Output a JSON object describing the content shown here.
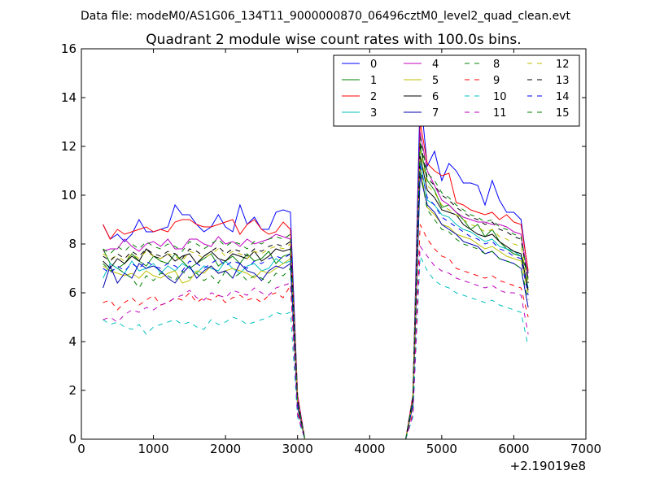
{
  "figure": {
    "suptitle": "Data file: modeM0/AS1G06_134T11_9000000870_06496cztM0_level2_quad_clean.evt"
  },
  "chart_data": {
    "type": "line",
    "title": "Quadrant 2 module wise count rates with 100.0s bins.",
    "xlabel": "",
    "ylabel": "",
    "xlim": [
      0,
      7000
    ],
    "ylim": [
      0,
      16
    ],
    "x_offset_label": "+2.19019e8",
    "xticks": [
      0,
      1000,
      2000,
      3000,
      4000,
      5000,
      6000,
      7000
    ],
    "yticks": [
      0,
      2,
      4,
      6,
      8,
      10,
      12,
      14,
      16
    ],
    "xtick_labels": [
      "0",
      "1000",
      "2000",
      "3000",
      "4000",
      "5000",
      "6000",
      "7000"
    ],
    "ytick_labels": [
      "0",
      "2",
      "4",
      "6",
      "8",
      "10",
      "12",
      "14",
      "16"
    ],
    "grid": false,
    "legend": {
      "placement": "top-right",
      "columns": 4
    },
    "x": [
      300,
      400,
      500,
      600,
      700,
      800,
      900,
      1000,
      1100,
      1200,
      1300,
      1400,
      1500,
      1600,
      1700,
      1800,
      1900,
      2000,
      2100,
      2200,
      2300,
      2400,
      2500,
      2600,
      2700,
      2800,
      2900,
      3000,
      3100,
      3200,
      3300,
      3400,
      3500,
      3600,
      3700,
      3800,
      3900,
      4000,
      4100,
      4200,
      4300,
      4400,
      4500,
      4600,
      4700,
      4800,
      4900,
      5000,
      5100,
      5200,
      5300,
      5400,
      5500,
      5600,
      5700,
      5800,
      5900,
      6000,
      6100,
      6200
    ],
    "series": [
      {
        "name": "0",
        "color": "#0000ff",
        "dash": "solid",
        "values": [
          8.8,
          8.2,
          8.4,
          8.1,
          8.4,
          9.0,
          8.5,
          8.5,
          8.6,
          8.7,
          9.6,
          9.2,
          9.2,
          8.8,
          8.5,
          8.7,
          9.2,
          8.7,
          8.5,
          9.6,
          8.8,
          9.1,
          8.6,
          8.6,
          9.3,
          9.4,
          9.3,
          1.8,
          0,
          0,
          0,
          0,
          0,
          0,
          0,
          0,
          0,
          0,
          0,
          0,
          0,
          0,
          0,
          1.8,
          14.2,
          11.2,
          11.8,
          10.6,
          11.3,
          11.0,
          10.5,
          10.5,
          10.4,
          9.6,
          10.6,
          9.8,
          9.3,
          9.3,
          9.0,
          6.8
        ]
      },
      {
        "name": "1",
        "color": "#008000",
        "dash": "solid",
        "values": [
          7.8,
          7.2,
          7.0,
          7.2,
          7.6,
          7.3,
          7.1,
          7.5,
          7.3,
          7.2,
          7.6,
          7.3,
          7.0,
          7.2,
          7.4,
          7.6,
          7.1,
          7.3,
          7.5,
          7.2,
          7.6,
          7.3,
          7.4,
          7.7,
          7.2,
          7.5,
          7.6,
          1.5,
          0,
          0,
          0,
          0,
          0,
          0,
          0,
          0,
          0,
          0,
          0,
          0,
          0,
          0,
          0,
          1.6,
          12.0,
          10.6,
          10.2,
          9.5,
          9.6,
          9.3,
          9.0,
          8.6,
          8.8,
          8.3,
          8.6,
          8.1,
          7.8,
          7.6,
          7.5,
          6.8
        ]
      },
      {
        "name": "2",
        "color": "#ff0000",
        "dash": "solid",
        "values": [
          8.8,
          8.2,
          8.6,
          8.4,
          8.5,
          8.6,
          8.7,
          8.5,
          8.6,
          8.5,
          8.9,
          9.0,
          9.0,
          8.8,
          8.7,
          8.7,
          8.8,
          8.9,
          9.0,
          8.4,
          8.8,
          9.0,
          8.6,
          8.4,
          8.5,
          8.9,
          8.6,
          1.8,
          0,
          0,
          0,
          0,
          0,
          0,
          0,
          0,
          0,
          0,
          0,
          0,
          0,
          0,
          0,
          1.8,
          13.0,
          11.3,
          11.0,
          10.8,
          10.9,
          9.7,
          9.6,
          9.4,
          9.3,
          9.2,
          9.3,
          9.0,
          9.2,
          8.9,
          8.8,
          6.9
        ]
      },
      {
        "name": "3",
        "color": "#00bfbf",
        "dash": "solid",
        "values": [
          6.6,
          7.2,
          7.0,
          6.8,
          7.3,
          6.9,
          7.0,
          7.2,
          6.8,
          7.1,
          6.9,
          7.2,
          7.0,
          6.8,
          7.1,
          7.0,
          6.9,
          7.3,
          7.0,
          6.8,
          7.1,
          7.2,
          6.9,
          7.0,
          7.4,
          7.2,
          7.3,
          1.4,
          0,
          0,
          0,
          0,
          0,
          0,
          0,
          0,
          0,
          0,
          0,
          0,
          0,
          0,
          0,
          1.5,
          11.4,
          9.8,
          9.6,
          9.2,
          9.1,
          8.8,
          8.6,
          8.5,
          8.3,
          8.1,
          8.2,
          7.9,
          7.8,
          7.7,
          7.5,
          6.2
        ]
      },
      {
        "name": "4",
        "color": "#bf00bf",
        "dash": "solid",
        "values": [
          7.7,
          7.8,
          7.8,
          8.2,
          7.9,
          7.7,
          8.0,
          8.1,
          7.9,
          8.2,
          7.8,
          7.8,
          8.2,
          8.2,
          8.0,
          7.9,
          8.3,
          8.0,
          8.1,
          7.9,
          8.2,
          8.0,
          8.1,
          8.2,
          8.4,
          8.3,
          8.2,
          1.7,
          0,
          0,
          0,
          0,
          0,
          0,
          0,
          0,
          0,
          0,
          0,
          0,
          0,
          0,
          0,
          1.7,
          12.6,
          11.0,
          10.4,
          9.8,
          9.6,
          9.3,
          9.1,
          9.0,
          8.9,
          8.9,
          8.8,
          8.8,
          8.7,
          8.5,
          8.4,
          6.6
        ]
      },
      {
        "name": "5",
        "color": "#bfbf00",
        "dash": "solid",
        "values": [
          7.1,
          6.9,
          6.8,
          6.7,
          6.8,
          6.6,
          6.9,
          6.7,
          6.6,
          6.8,
          6.9,
          6.4,
          6.5,
          6.9,
          6.8,
          7.1,
          6.8,
          6.9,
          7.0,
          6.9,
          6.8,
          6.6,
          6.9,
          6.8,
          7.0,
          7.2,
          7.4,
          1.4,
          0,
          0,
          0,
          0,
          0,
          0,
          0,
          0,
          0,
          0,
          0,
          0,
          0,
          0,
          0,
          1.4,
          11.1,
          9.5,
          9.2,
          8.8,
          8.7,
          8.4,
          8.3,
          8.2,
          8.0,
          7.8,
          7.9,
          7.7,
          7.5,
          7.4,
          7.3,
          6.0
        ]
      },
      {
        "name": "6",
        "color": "#000000",
        "dash": "solid",
        "values": [
          7.3,
          7.0,
          7.4,
          7.2,
          7.5,
          7.3,
          7.8,
          7.5,
          7.4,
          7.6,
          7.3,
          7.5,
          7.6,
          7.2,
          7.5,
          7.7,
          7.4,
          7.3,
          7.6,
          7.5,
          7.4,
          7.7,
          7.3,
          7.5,
          7.8,
          7.7,
          7.8,
          1.5,
          0,
          0,
          0,
          0,
          0,
          0,
          0,
          0,
          0,
          0,
          0,
          0,
          0,
          0,
          0,
          1.6,
          11.6,
          10.2,
          9.9,
          9.4,
          9.3,
          9.2,
          8.8,
          8.6,
          8.4,
          8.3,
          8.4,
          8.1,
          7.9,
          7.7,
          7.6,
          6.1
        ]
      },
      {
        "name": "7",
        "color": "#0000aa",
        "dash": "solid",
        "values": [
          6.2,
          7.1,
          6.4,
          6.8,
          6.6,
          7.2,
          7.0,
          7.1,
          6.9,
          6.6,
          6.4,
          6.8,
          7.1,
          6.6,
          6.9,
          7.1,
          6.8,
          6.9,
          6.6,
          7.2,
          6.9,
          6.8,
          6.5,
          6.9,
          7.1,
          7.0,
          7.2,
          1.3,
          0,
          0,
          0,
          0,
          0,
          0,
          0,
          0,
          0,
          0,
          0,
          0,
          0,
          0,
          0,
          1.4,
          10.8,
          9.6,
          9.3,
          8.8,
          8.6,
          8.4,
          8.1,
          8.0,
          7.9,
          7.6,
          7.7,
          7.4,
          7.3,
          7.2,
          7.0,
          5.4
        ]
      },
      {
        "name": "8",
        "color": "#008000",
        "dash": "dashed",
        "values": [
          7.2,
          6.9,
          7.0,
          6.8,
          6.6,
          6.2,
          6.7,
          6.5,
          6.8,
          6.7,
          6.5,
          6.9,
          6.6,
          6.8,
          6.5,
          6.7,
          6.4,
          6.9,
          6.6,
          6.8,
          6.5,
          6.7,
          6.6,
          6.4,
          6.8,
          6.7,
          7.0,
          1.3,
          0,
          0,
          0,
          0,
          0,
          0,
          0,
          0,
          0,
          0,
          0,
          0,
          0,
          0,
          0,
          1.4,
          11.0,
          9.4,
          9.0,
          8.6,
          8.5,
          8.2,
          8.0,
          7.9,
          7.8,
          7.6,
          7.7,
          7.4,
          7.3,
          7.2,
          7.0,
          5.7
        ]
      },
      {
        "name": "9",
        "color": "#ff0000",
        "dash": "dashed",
        "values": [
          5.6,
          5.7,
          5.3,
          5.6,
          5.8,
          5.5,
          5.7,
          5.9,
          5.5,
          5.6,
          5.8,
          5.7,
          6.0,
          5.6,
          5.8,
          5.7,
          5.9,
          5.6,
          5.8,
          5.9,
          5.7,
          5.8,
          5.6,
          5.9,
          6.0,
          5.8,
          6.3,
          1.1,
          0,
          0,
          0,
          0,
          0,
          0,
          0,
          0,
          0,
          0,
          0,
          0,
          0,
          0,
          0,
          1.1,
          8.8,
          8.2,
          7.8,
          7.5,
          7.4,
          7.0,
          6.9,
          6.8,
          6.7,
          6.6,
          6.7,
          6.5,
          6.4,
          6.3,
          6.2,
          5.0
        ]
      },
      {
        "name": "10",
        "color": "#00bfbf",
        "dash": "dashed",
        "values": [
          4.9,
          4.7,
          4.8,
          4.6,
          4.5,
          4.7,
          4.3,
          4.6,
          4.7,
          4.8,
          4.9,
          4.7,
          4.8,
          4.6,
          4.5,
          4.9,
          4.7,
          4.8,
          5.0,
          4.9,
          4.7,
          4.8,
          4.9,
          5.0,
          5.2,
          5.1,
          5.2,
          0.9,
          0,
          0,
          0,
          0,
          0,
          0,
          0,
          0,
          0,
          0,
          0,
          0,
          0,
          0,
          0,
          0.9,
          7.5,
          6.9,
          6.5,
          6.3,
          6.2,
          6.0,
          5.9,
          5.8,
          5.7,
          5.6,
          5.7,
          5.5,
          5.4,
          5.3,
          5.2,
          3.8
        ]
      },
      {
        "name": "11",
        "color": "#bf00bf",
        "dash": "dashed",
        "values": [
          4.9,
          5.0,
          4.8,
          5.1,
          5.3,
          5.2,
          5.4,
          5.3,
          5.5,
          5.6,
          5.8,
          5.9,
          6.1,
          5.8,
          5.7,
          6.0,
          5.9,
          5.8,
          6.1,
          6.0,
          5.9,
          6.2,
          6.0,
          5.9,
          6.2,
          6.3,
          6.4,
          1.0,
          0,
          0,
          0,
          0,
          0,
          0,
          0,
          0,
          0,
          0,
          0,
          0,
          0,
          0,
          0,
          1.0,
          7.9,
          7.5,
          7.1,
          6.9,
          6.8,
          6.6,
          6.5,
          6.4,
          6.3,
          6.2,
          6.3,
          6.1,
          6.0,
          6.0,
          5.9,
          4.3
        ]
      },
      {
        "name": "12",
        "color": "#bfbf00",
        "dash": "dashed",
        "values": [
          7.6,
          7.4,
          7.5,
          7.3,
          7.6,
          7.4,
          7.7,
          7.5,
          7.4,
          7.6,
          7.5,
          7.3,
          7.7,
          7.6,
          7.4,
          7.6,
          7.8,
          7.5,
          7.7,
          7.6,
          7.4,
          7.7,
          7.6,
          7.8,
          7.9,
          7.8,
          8.0,
          1.5,
          0,
          0,
          0,
          0,
          0,
          0,
          0,
          0,
          0,
          0,
          0,
          0,
          0,
          0,
          0,
          1.6,
          11.8,
          10.4,
          10.1,
          9.6,
          9.4,
          9.2,
          9.0,
          8.8,
          8.7,
          8.5,
          8.6,
          8.3,
          8.2,
          8.0,
          7.9,
          6.3
        ]
      },
      {
        "name": "13",
        "color": "#000000",
        "dash": "dashed",
        "values": [
          7.5,
          7.3,
          7.6,
          7.4,
          7.7,
          7.5,
          7.8,
          7.6,
          7.5,
          7.7,
          7.6,
          7.4,
          7.8,
          7.7,
          7.5,
          7.7,
          7.9,
          7.6,
          7.8,
          7.7,
          7.5,
          7.8,
          7.7,
          7.9,
          8.0,
          7.9,
          8.1,
          1.6,
          0,
          0,
          0,
          0,
          0,
          0,
          0,
          0,
          0,
          0,
          0,
          0,
          0,
          0,
          0,
          1.7,
          12.2,
          10.7,
          10.4,
          10.0,
          9.8,
          9.5,
          9.3,
          9.1,
          9.0,
          8.8,
          8.9,
          8.6,
          8.5,
          8.3,
          8.2,
          6.4
        ]
      },
      {
        "name": "14",
        "color": "#0000ff",
        "dash": "dashed",
        "values": [
          7.0,
          6.8,
          7.1,
          6.9,
          7.2,
          7.0,
          7.3,
          7.1,
          7.0,
          7.2,
          7.1,
          6.9,
          7.3,
          7.2,
          7.0,
          7.2,
          7.4,
          7.1,
          7.3,
          7.2,
          7.0,
          7.3,
          7.2,
          7.4,
          7.5,
          7.4,
          7.6,
          1.4,
          0,
          0,
          0,
          0,
          0,
          0,
          0,
          0,
          0,
          0,
          0,
          0,
          0,
          0,
          0,
          1.5,
          11.2,
          9.9,
          9.6,
          9.1,
          8.9,
          8.7,
          8.5,
          8.3,
          8.2,
          8.0,
          8.1,
          7.8,
          7.7,
          7.5,
          7.4,
          5.9
        ]
      },
      {
        "name": "15",
        "color": "#008000",
        "dash": "dashed",
        "values": [
          7.8,
          7.6,
          7.9,
          7.7,
          8.0,
          7.8,
          8.1,
          7.9,
          7.8,
          8.0,
          7.9,
          7.7,
          8.1,
          8.0,
          7.8,
          8.0,
          8.2,
          7.9,
          8.1,
          8.0,
          7.8,
          8.1,
          8.0,
          8.2,
          8.3,
          8.2,
          8.4,
          1.6,
          0,
          0,
          0,
          0,
          0,
          0,
          0,
          0,
          0,
          0,
          0,
          0,
          0,
          0,
          0,
          1.7,
          12.4,
          10.9,
          10.6,
          10.1,
          9.9,
          9.6,
          9.4,
          9.2,
          9.1,
          8.9,
          9.0,
          8.7,
          8.6,
          8.4,
          8.3,
          6.5
        ]
      }
    ]
  }
}
